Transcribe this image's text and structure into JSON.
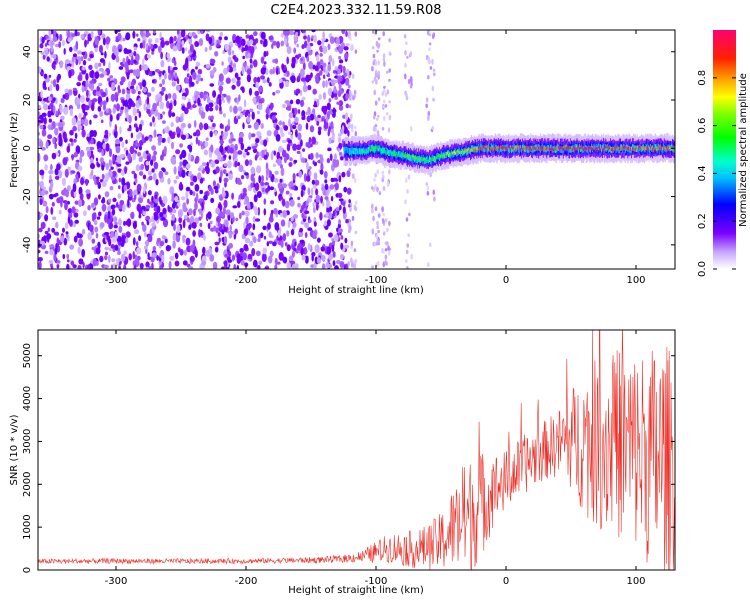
{
  "title": "C2E4.2023.332.11.59.R08",
  "colors": {
    "snr_line": "#ee3028",
    "spectrogram_noise": "#8a2be2",
    "spectrogram_signal": "#ff0000"
  },
  "chart_data": [
    {
      "type": "heatmap",
      "xlabel": "Height of straight line (km)",
      "ylabel": "Frequency (Hz)",
      "xlim": [
        -360,
        130
      ],
      "ylim": [
        -50,
        49
      ],
      "xticks": [
        -300,
        -200,
        -100,
        0,
        100
      ],
      "yticks": [
        -40,
        -20,
        0,
        20,
        40
      ],
      "colorbar": {
        "label": "Normalized spectral amplitude",
        "range": [
          0,
          1
        ],
        "ticks": [
          "0.0",
          "0.2",
          "0.4",
          "0.6",
          "0.8"
        ],
        "colormap": "rainbow (violet → blue → cyan → green → yellow → orange → red → pink)"
      },
      "description_values": {
        "noise_region_x": [
          -360,
          -125
        ],
        "noise_frequency_span": [
          -50,
          49
        ],
        "signal_trace": {
          "x": [
            -125,
            -110,
            -100,
            -90,
            -80,
            -70,
            -60,
            -50,
            -40,
            -30,
            -20,
            -10,
            0,
            20,
            40,
            60,
            80,
            100,
            120,
            130
          ],
          "freq": [
            -1,
            -1,
            0,
            -2,
            -3,
            -4,
            -5,
            -3,
            -2,
            -1,
            0,
            0,
            0,
            0,
            0,
            0,
            0,
            0,
            0,
            0
          ],
          "amplitude": [
            0.35,
            0.45,
            0.55,
            0.5,
            0.55,
            0.6,
            0.5,
            0.6,
            0.65,
            0.7,
            0.85,
            0.9,
            0.92,
            0.95,
            0.95,
            0.92,
            0.95,
            0.9,
            0.85,
            0.8
          ]
        }
      }
    },
    {
      "type": "line",
      "xlabel": "Height of straight line (km)",
      "ylabel": "SNR (10 * v/v)",
      "xlim": [
        -360,
        130
      ],
      "ylim": [
        0,
        5600
      ],
      "xticks": [
        -300,
        -200,
        -100,
        0,
        100
      ],
      "yticks": [
        0,
        1000,
        2000,
        3000,
        4000,
        5000
      ],
      "series": [
        {
          "x": [
            -360,
            -300,
            -250,
            -200,
            -150,
            -125,
            -110,
            -100,
            -90,
            -80,
            -70,
            -60,
            -50,
            -40,
            -30,
            -20,
            -10,
            0,
            10,
            20,
            30,
            40,
            50,
            60,
            70,
            80,
            90,
            100,
            110,
            120,
            130
          ],
          "y": [
            200,
            210,
            205,
            210,
            230,
            260,
            320,
            420,
            520,
            500,
            480,
            520,
            650,
            1000,
            1200,
            1500,
            1850,
            2100,
            2350,
            2600,
            2800,
            2950,
            3050,
            3000,
            2950,
            3000,
            2950,
            2800,
            2650,
            2600,
            2500
          ],
          "noise_amplitude": [
            60,
            60,
            60,
            60,
            70,
            90,
            150,
            250,
            350,
            400,
            450,
            550,
            700,
            1000,
            1400,
            1300,
            900,
            700,
            700,
            700,
            700,
            800,
            1200,
            1700,
            2000,
            2200,
            2300,
            2400,
            2600,
            2800,
            2600
          ]
        }
      ]
    }
  ]
}
